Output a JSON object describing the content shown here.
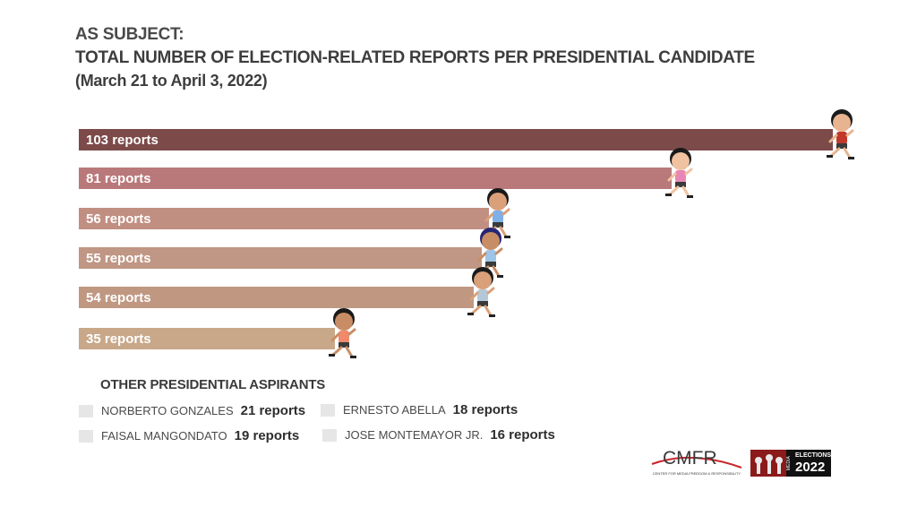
{
  "header": {
    "line1": "AS SUBJECT:",
    "line2": "TOTAL NUMBER OF ELECTION-RELATED REPORTS PER PRESIDENTIAL CANDIDATE",
    "line3": "(March 21 to April 3, 2022)"
  },
  "chart_data": {
    "type": "bar",
    "orientation": "horizontal",
    "title": "TOTAL NUMBER OF ELECTION-RELATED REPORTS PER PRESIDENTIAL CANDIDATE",
    "subtitle": "(March 21 to April 3, 2022)",
    "xlabel": "",
    "ylabel": "",
    "xlim": [
      0,
      103
    ],
    "grid": false,
    "legend": "none",
    "values": [
      103,
      81,
      56,
      55,
      54,
      35
    ],
    "labels": [
      "103 reports",
      "81 reports",
      "56 reports",
      "55 reports",
      "54 reports",
      "35 reports"
    ],
    "colors": [
      "#7d4a4a",
      "#b9787a",
      "#c18f82",
      "#c09684",
      "#c09882",
      "#c8a889"
    ],
    "markers": "running-candidate-figure-icon"
  },
  "others": {
    "heading": "OTHER PRESIDENTIAL ASPIRANTS",
    "swatch_color": "#e6e6e6",
    "items": [
      {
        "name": "NORBERTO GONZALES",
        "value": "21 reports"
      },
      {
        "name": "ERNESTO ABELLA",
        "value": "18 reports"
      },
      {
        "name": "FAISAL MANGONDATO",
        "value": "19 reports"
      },
      {
        "name": "JOSE MONTEMAYOR JR.",
        "value": "16 reports"
      }
    ]
  },
  "logos": {
    "cmfr": "CMFR",
    "cmfr_tagline": "CENTER FOR MEDIA FREEDOM & RESPONSIBILITY",
    "media_elections_media": "MEDIA",
    "media_elections_word": "ELECTIONS",
    "media_elections_year": "2022"
  }
}
